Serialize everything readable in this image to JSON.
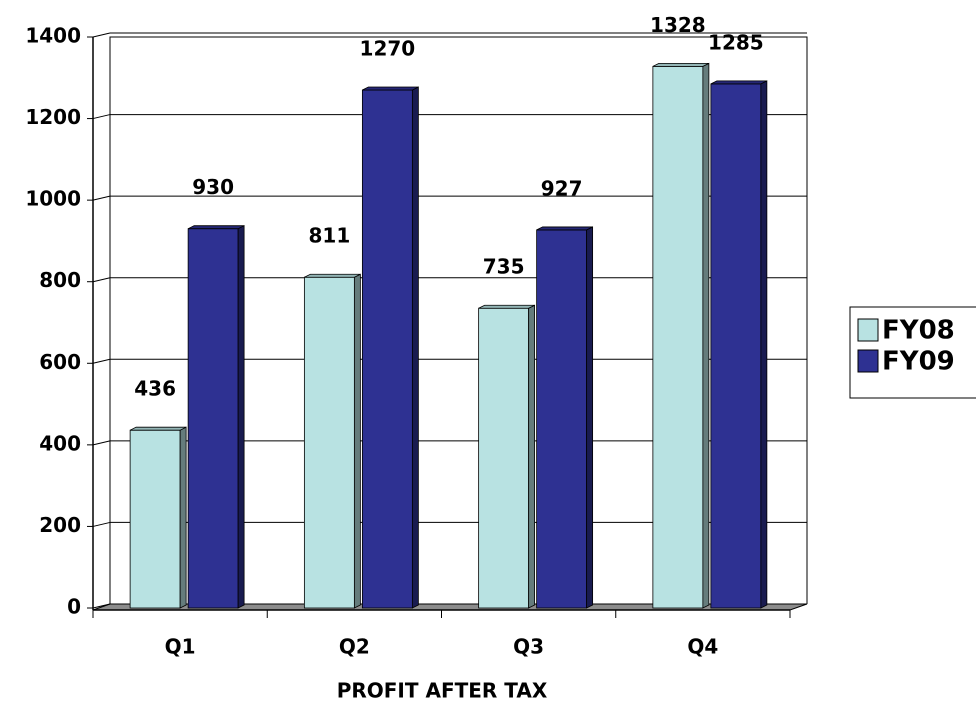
{
  "chart_data": {
    "type": "bar",
    "x_label": "PROFIT AFTER TAX",
    "categories": [
      "Q1",
      "Q2",
      "Q3",
      "Q4"
    ],
    "series": [
      {
        "name": "FY08",
        "color": "#b8e2e2",
        "values": [
          436,
          811,
          735,
          1328
        ]
      },
      {
        "name": "FY09",
        "color": "#2e3192",
        "values": [
          930,
          1270,
          927,
          1285
        ]
      }
    ],
    "ylim": [
      0,
      1400
    ],
    "yticks": [
      0,
      200,
      400,
      600,
      800,
      1000,
      1200,
      1400
    ],
    "grid": true,
    "legend": "right"
  }
}
